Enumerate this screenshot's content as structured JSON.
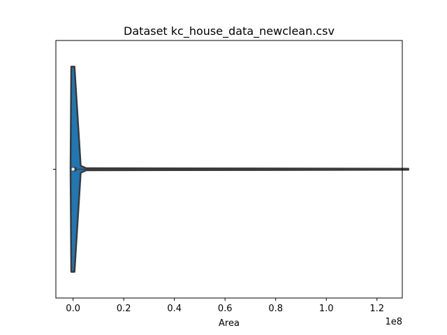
{
  "chart_data": {
    "type": "violin",
    "title": "Dataset kc_house_data_newclean.csv",
    "xlabel": "Area",
    "ylabel": "",
    "x_offset_label": "1e8",
    "xlim": [
      -0.068,
      1.3
    ],
    "xticks": [
      0.0,
      0.2,
      0.4,
      0.6,
      0.8,
      1.0,
      1.2
    ],
    "xtick_labels": [
      "0.0",
      "0.2",
      "0.4",
      "0.6",
      "0.8",
      "1.0",
      "1.2"
    ],
    "orientation": "horizontal",
    "grid": false,
    "legend": "none",
    "violin": {
      "min": 0.0,
      "max": 1.324,
      "q1": 0.0,
      "median": 0.0,
      "q3": 0.0,
      "body_range": [
        -0.01,
        0.03
      ],
      "tail_points": [
        0.03,
        0.1,
        0.3,
        0.5,
        0.7,
        0.9,
        1.1,
        1.324
      ],
      "fill_color": "#1f77b4",
      "edge_color": "#3a3a3a"
    }
  }
}
